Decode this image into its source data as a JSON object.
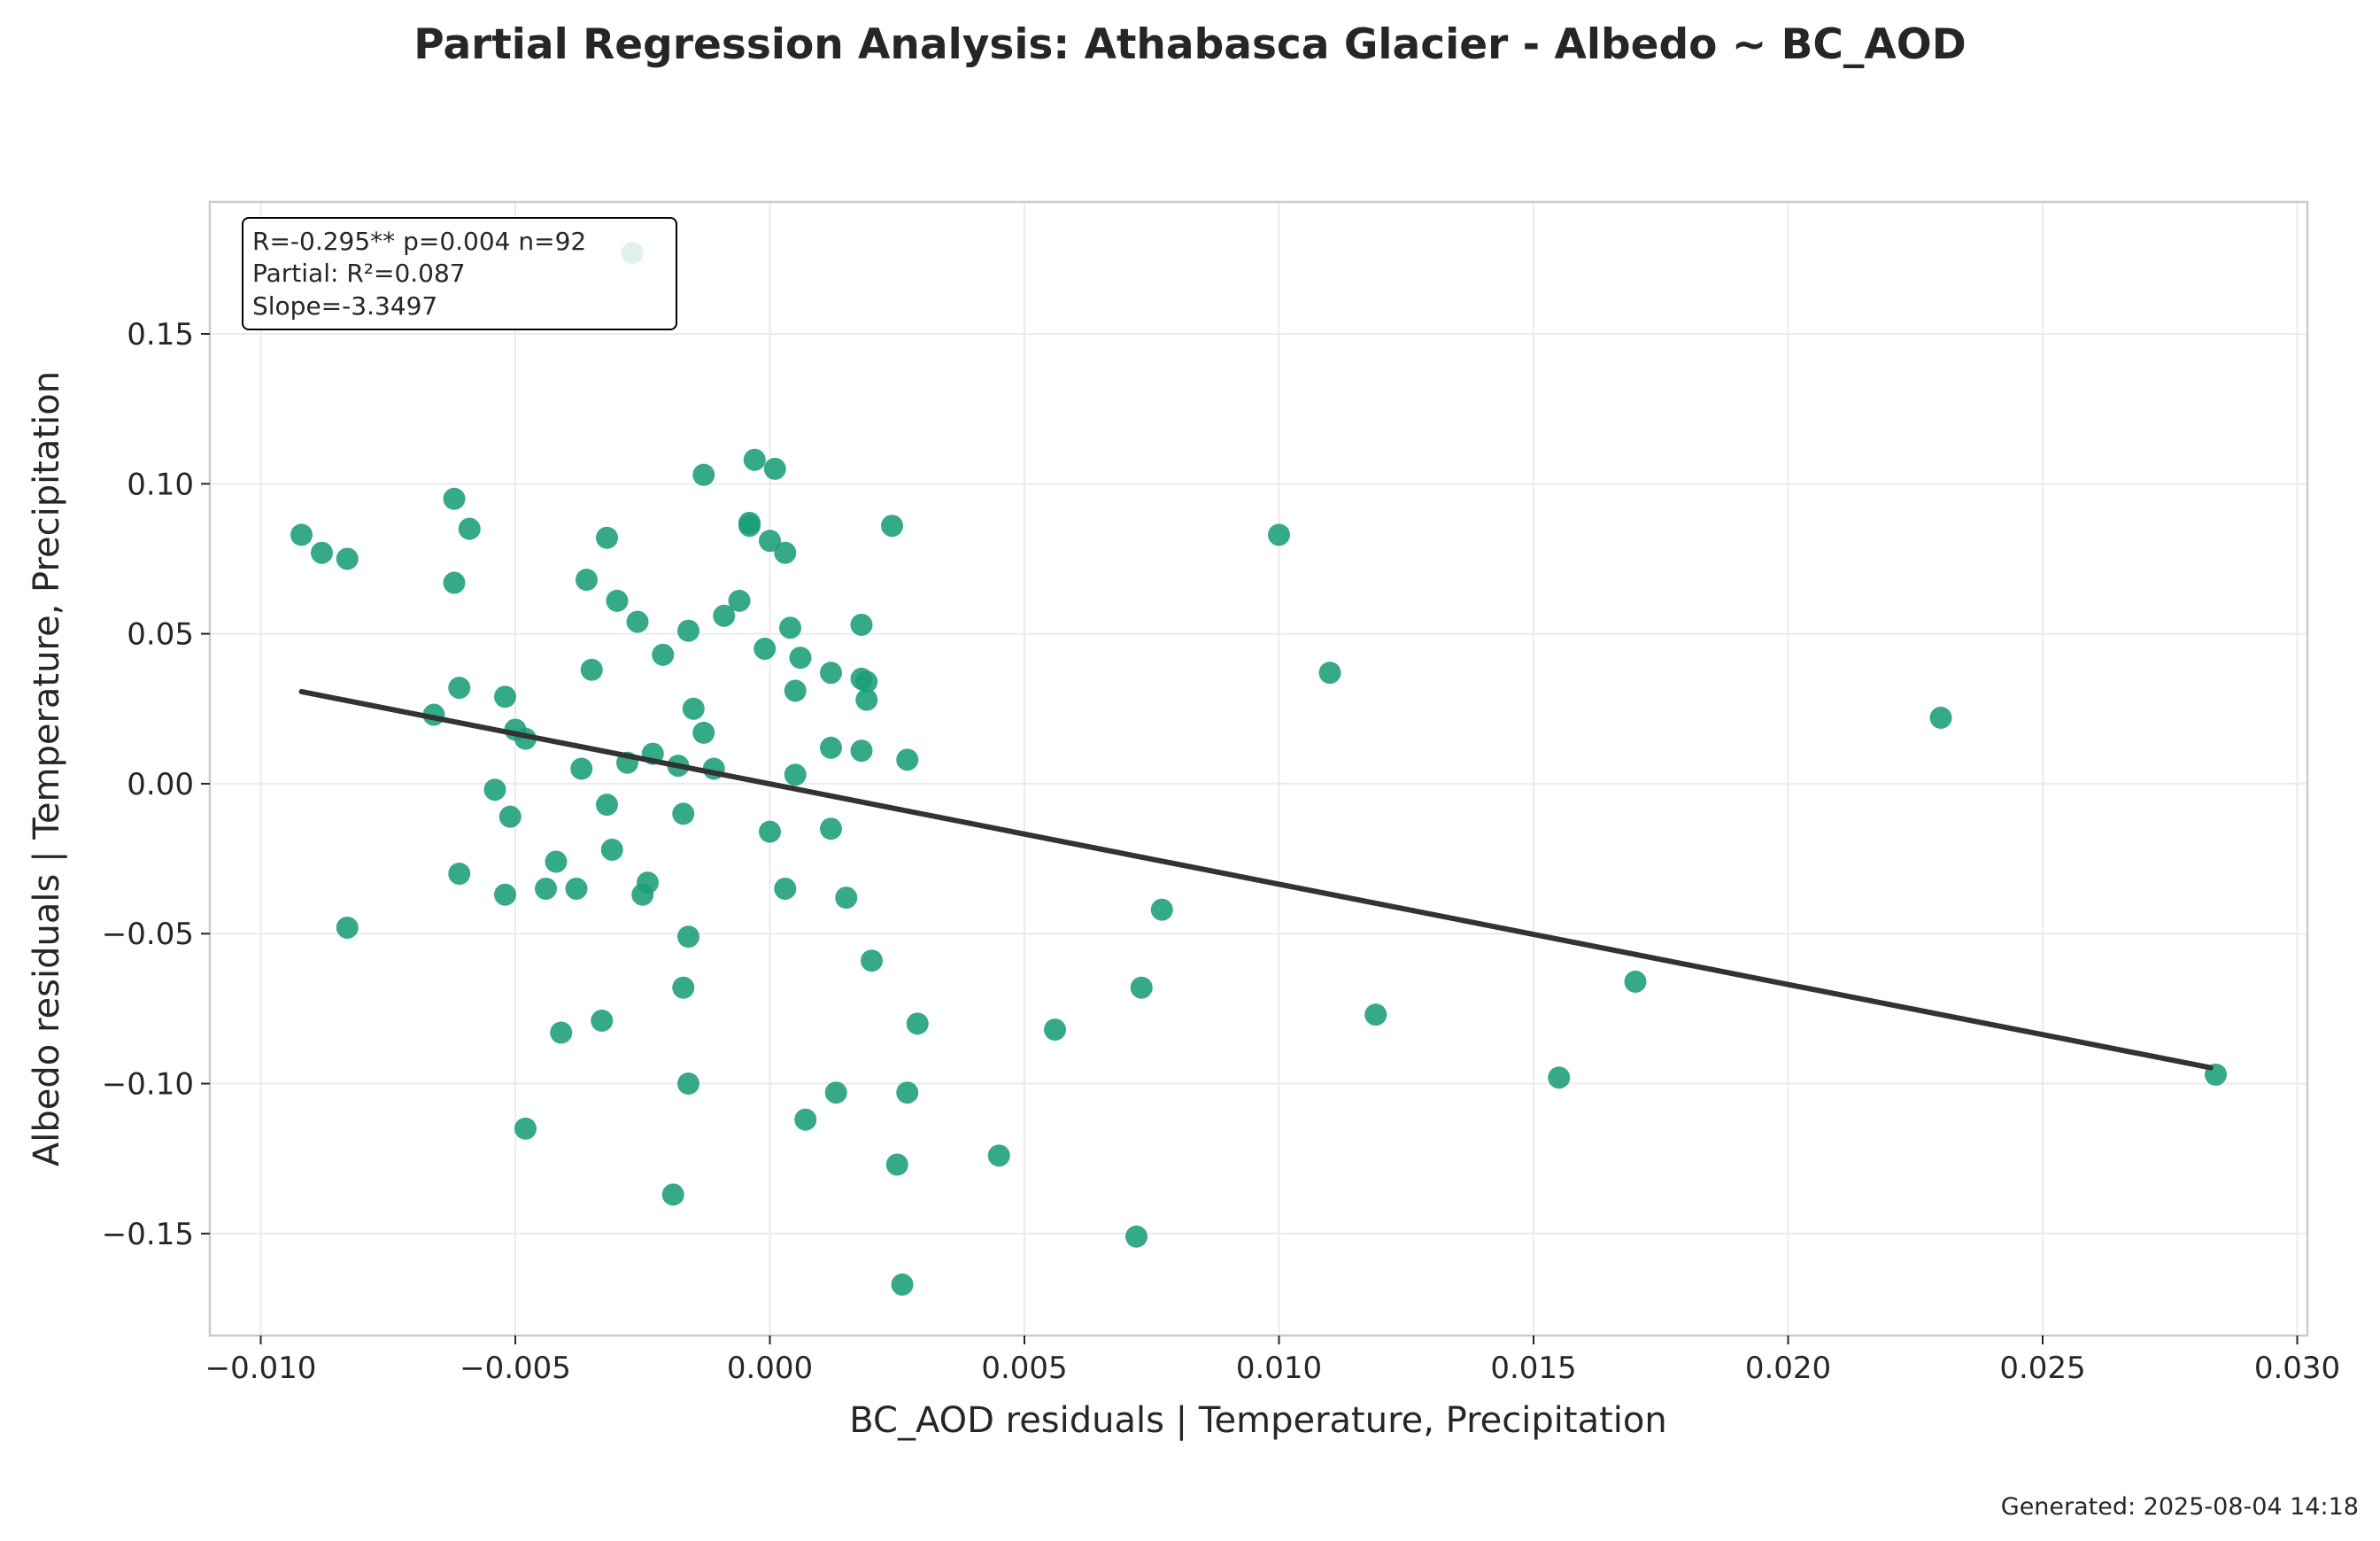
{
  "chart_data": {
    "type": "scatter",
    "title": "Partial Regression Analysis: Athabasca Glacier - Albedo ~ BC_AOD",
    "xlabel": "BC_AOD residuals | Temperature, Precipitation",
    "ylabel": "Albedo residuals | Temperature, Precipitation",
    "xlim": [
      -0.011,
      0.0302
    ],
    "ylim": [
      -0.184,
      0.194
    ],
    "xticks": [
      -0.01,
      -0.005,
      0.0,
      0.005,
      0.01,
      0.015,
      0.02,
      0.025,
      0.03
    ],
    "xtick_labels": [
      "−0.010",
      "−0.005",
      "0.000",
      "0.005",
      "0.010",
      "0.015",
      "0.020",
      "0.025",
      "0.030"
    ],
    "yticks": [
      -0.15,
      -0.1,
      -0.05,
      0.0,
      0.05,
      0.1,
      0.15
    ],
    "ytick_labels": [
      "−0.15",
      "−0.10",
      "−0.05",
      "0.00",
      "0.05",
      "0.10",
      "0.15"
    ],
    "grid": true,
    "point_color": "#1a9e77",
    "line_color": "#333333",
    "stats": {
      "line1": "R=-0.295**  p=0.004  n=92",
      "line2": "Partial: R²=0.087",
      "line3": "Slope=-3.3497",
      "placement": "top-left"
    },
    "fit_line": {
      "slope": -3.3497,
      "x": [
        -0.0092,
        0.0283
      ],
      "y": [
        0.0307,
        -0.0947
      ]
    },
    "points": [
      {
        "x": -0.0092,
        "y": 0.083
      },
      {
        "x": -0.0088,
        "y": 0.077
      },
      {
        "x": -0.0083,
        "y": 0.075
      },
      {
        "x": -0.0083,
        "y": -0.048
      },
      {
        "x": -0.0066,
        "y": 0.023
      },
      {
        "x": -0.0062,
        "y": 0.095
      },
      {
        "x": -0.0062,
        "y": 0.067
      },
      {
        "x": -0.0061,
        "y": 0.032
      },
      {
        "x": -0.0061,
        "y": -0.03
      },
      {
        "x": -0.0059,
        "y": 0.085
      },
      {
        "x": -0.0054,
        "y": -0.002
      },
      {
        "x": -0.0052,
        "y": 0.029
      },
      {
        "x": -0.0052,
        "y": -0.037
      },
      {
        "x": -0.0051,
        "y": -0.011
      },
      {
        "x": -0.005,
        "y": 0.018
      },
      {
        "x": -0.0048,
        "y": 0.015
      },
      {
        "x": -0.0048,
        "y": -0.115
      },
      {
        "x": -0.0044,
        "y": -0.035
      },
      {
        "x": -0.0042,
        "y": -0.026
      },
      {
        "x": -0.0041,
        "y": -0.083
      },
      {
        "x": -0.0038,
        "y": -0.035
      },
      {
        "x": -0.0037,
        "y": 0.005
      },
      {
        "x": -0.0036,
        "y": 0.068
      },
      {
        "x": -0.0035,
        "y": 0.038
      },
      {
        "x": -0.0033,
        "y": -0.079
      },
      {
        "x": -0.0032,
        "y": 0.082
      },
      {
        "x": -0.0032,
        "y": -0.007
      },
      {
        "x": -0.0031,
        "y": -0.022
      },
      {
        "x": -0.003,
        "y": 0.061
      },
      {
        "x": -0.0028,
        "y": 0.007
      },
      {
        "x": -0.0027,
        "y": 0.177
      },
      {
        "x": -0.0026,
        "y": 0.054
      },
      {
        "x": -0.0025,
        "y": -0.037
      },
      {
        "x": -0.0024,
        "y": -0.033
      },
      {
        "x": -0.0023,
        "y": 0.01
      },
      {
        "x": -0.0021,
        "y": 0.043
      },
      {
        "x": -0.0019,
        "y": -0.137
      },
      {
        "x": -0.0018,
        "y": 0.006
      },
      {
        "x": -0.0017,
        "y": -0.068
      },
      {
        "x": -0.0017,
        "y": -0.01
      },
      {
        "x": -0.0016,
        "y": -0.051
      },
      {
        "x": -0.0016,
        "y": -0.1
      },
      {
        "x": -0.0016,
        "y": 0.051
      },
      {
        "x": -0.0015,
        "y": 0.025
      },
      {
        "x": -0.0013,
        "y": 0.017
      },
      {
        "x": -0.0013,
        "y": 0.103
      },
      {
        "x": -0.0011,
        "y": 0.005
      },
      {
        "x": -0.0009,
        "y": 0.056
      },
      {
        "x": -0.0006,
        "y": 0.061
      },
      {
        "x": -0.0004,
        "y": 0.086
      },
      {
        "x": -0.0004,
        "y": 0.087
      },
      {
        "x": -0.0003,
        "y": 0.108
      },
      {
        "x": -0.0001,
        "y": 0.045
      },
      {
        "x": 0.0,
        "y": -0.016
      },
      {
        "x": 0.0,
        "y": 0.081
      },
      {
        "x": 0.0001,
        "y": 0.105
      },
      {
        "x": 0.0003,
        "y": -0.035
      },
      {
        "x": 0.0003,
        "y": 0.077
      },
      {
        "x": 0.0004,
        "y": 0.052
      },
      {
        "x": 0.0005,
        "y": 0.031
      },
      {
        "x": 0.0005,
        "y": 0.003
      },
      {
        "x": 0.0006,
        "y": 0.042
      },
      {
        "x": 0.0007,
        "y": -0.112
      },
      {
        "x": 0.0012,
        "y": 0.037
      },
      {
        "x": 0.0012,
        "y": 0.012
      },
      {
        "x": 0.0012,
        "y": -0.015
      },
      {
        "x": 0.0013,
        "y": -0.103
      },
      {
        "x": 0.0015,
        "y": -0.038
      },
      {
        "x": 0.0018,
        "y": 0.053
      },
      {
        "x": 0.0018,
        "y": 0.035
      },
      {
        "x": 0.0018,
        "y": 0.011
      },
      {
        "x": 0.0019,
        "y": 0.034
      },
      {
        "x": 0.0019,
        "y": 0.028
      },
      {
        "x": 0.002,
        "y": -0.059
      },
      {
        "x": 0.0024,
        "y": 0.086
      },
      {
        "x": 0.0025,
        "y": -0.127
      },
      {
        "x": 0.0026,
        "y": -0.167
      },
      {
        "x": 0.0027,
        "y": 0.008
      },
      {
        "x": 0.0027,
        "y": -0.103
      },
      {
        "x": 0.0029,
        "y": -0.08
      },
      {
        "x": 0.0045,
        "y": -0.124
      },
      {
        "x": 0.0056,
        "y": -0.082
      },
      {
        "x": 0.0072,
        "y": -0.151
      },
      {
        "x": 0.0073,
        "y": -0.068
      },
      {
        "x": 0.0077,
        "y": -0.042
      },
      {
        "x": 0.01,
        "y": 0.083
      },
      {
        "x": 0.011,
        "y": 0.037
      },
      {
        "x": 0.0119,
        "y": -0.077
      },
      {
        "x": 0.0155,
        "y": -0.098
      },
      {
        "x": 0.017,
        "y": -0.066
      },
      {
        "x": 0.023,
        "y": 0.022
      },
      {
        "x": 0.0284,
        "y": -0.097
      }
    ]
  },
  "footer": {
    "generated": "Generated: 2025-08-04 14:18"
  }
}
